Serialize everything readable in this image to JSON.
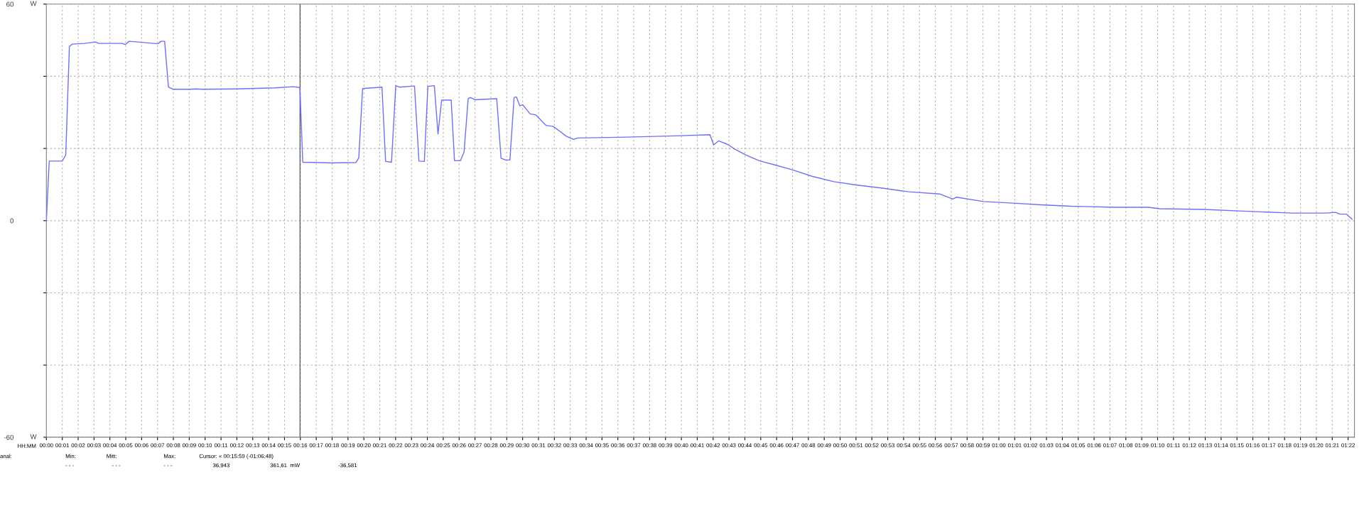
{
  "chart_data": {
    "type": "line",
    "ylabel": "W",
    "xlabel": "HH:MM",
    "xlim": [
      0,
      82.4
    ],
    "ylim": [
      -60,
      60
    ],
    "yticks": [
      -60,
      {
        "value": -40,
        "label": null
      },
      {
        "value": -20,
        "label": null
      },
      0,
      {
        "value": 20,
        "label": null
      },
      {
        "value": 40,
        "label": null
      },
      60
    ],
    "xticks": [
      {
        "value": 0,
        "label": "00:00"
      },
      {
        "value": 1,
        "label": "00:01"
      },
      {
        "value": 2,
        "label": "00:02"
      },
      {
        "value": 3,
        "label": "00:03"
      },
      {
        "value": 4,
        "label": "00:04"
      },
      {
        "value": 5,
        "label": "00:05"
      },
      {
        "value": 6,
        "label": "00:06"
      },
      {
        "value": 7,
        "label": "00:07"
      },
      {
        "value": 8,
        "label": "00:08"
      },
      {
        "value": 9,
        "label": "00:09"
      },
      {
        "value": 10,
        "label": "00:10"
      },
      {
        "value": 11,
        "label": "00:11"
      },
      {
        "value": 12,
        "label": "00:12"
      },
      {
        "value": 13,
        "label": "00:13"
      },
      {
        "value": 14,
        "label": "00:14"
      },
      {
        "value": 15,
        "label": "00:15"
      },
      {
        "value": 16,
        "label": "00:16"
      },
      {
        "value": 17,
        "label": "00:17"
      },
      {
        "value": 18,
        "label": "00:18"
      },
      {
        "value": 19,
        "label": "00:19"
      },
      {
        "value": 20,
        "label": "00:20"
      },
      {
        "value": 21,
        "label": "00:21"
      },
      {
        "value": 22,
        "label": "00:22"
      },
      {
        "value": 23,
        "label": "00:23"
      },
      {
        "value": 24,
        "label": "00:24"
      },
      {
        "value": 25,
        "label": "00:25"
      },
      {
        "value": 26,
        "label": "00:26"
      },
      {
        "value": 27,
        "label": "00:27"
      },
      {
        "value": 28,
        "label": "00:28"
      },
      {
        "value": 29,
        "label": "00:29"
      },
      {
        "value": 30,
        "label": "00:30"
      },
      {
        "value": 31,
        "label": "00:31"
      },
      {
        "value": 32,
        "label": "00:32"
      },
      {
        "value": 33,
        "label": "00:33"
      },
      {
        "value": 34,
        "label": "00:34"
      },
      {
        "value": 35,
        "label": "00:35"
      },
      {
        "value": 36,
        "label": "00:36"
      },
      {
        "value": 37,
        "label": "00:37"
      },
      {
        "value": 38,
        "label": "00:38"
      },
      {
        "value": 39,
        "label": "00:39"
      },
      {
        "value": 40,
        "label": "00:40"
      },
      {
        "value": 41,
        "label": "00:41"
      },
      {
        "value": 42,
        "label": "00:42"
      },
      {
        "value": 43,
        "label": "00:43"
      },
      {
        "value": 44,
        "label": "00:44"
      },
      {
        "value": 45,
        "label": "00:45"
      },
      {
        "value": 46,
        "label": "00:46"
      },
      {
        "value": 47,
        "label": "00:47"
      },
      {
        "value": 48,
        "label": "00:48"
      },
      {
        "value": 49,
        "label": "00:49"
      },
      {
        "value": 50,
        "label": "00:50"
      },
      {
        "value": 51,
        "label": "00:51"
      },
      {
        "value": 52,
        "label": "00:52"
      },
      {
        "value": 53,
        "label": "00:53"
      },
      {
        "value": 54,
        "label": "00:54"
      },
      {
        "value": 55,
        "label": "00:55"
      },
      {
        "value": 56,
        "label": "00:56"
      },
      {
        "value": 57,
        "label": "00:57"
      },
      {
        "value": 58,
        "label": "00:58"
      },
      {
        "value": 59,
        "label": "00:59"
      },
      {
        "value": 60,
        "label": "01:00"
      },
      {
        "value": 61,
        "label": "01:01"
      },
      {
        "value": 62,
        "label": "01:02"
      },
      {
        "value": 63,
        "label": "01:03"
      },
      {
        "value": 64,
        "label": "01:04"
      },
      {
        "value": 65,
        "label": "01:05"
      },
      {
        "value": 66,
        "label": "01:06"
      },
      {
        "value": 67,
        "label": "01:07"
      },
      {
        "value": 68,
        "label": "01:08"
      },
      {
        "value": 69,
        "label": "01:09"
      },
      {
        "value": 70,
        "label": "01:10"
      },
      {
        "value": 71,
        "label": "01:11"
      },
      {
        "value": 72,
        "label": "01:12"
      },
      {
        "value": 73,
        "label": "01:13"
      },
      {
        "value": 74,
        "label": "01:14"
      },
      {
        "value": 75,
        "label": "01:15"
      },
      {
        "value": 76,
        "label": "01:16"
      },
      {
        "value": 77,
        "label": "01:17"
      },
      {
        "value": 78,
        "label": "01:18"
      },
      {
        "value": 79,
        "label": "01:19"
      },
      {
        "value": 80,
        "label": "01:20"
      },
      {
        "value": 81,
        "label": "01:21"
      },
      {
        "value": 82,
        "label": "01:22"
      }
    ],
    "grid": true,
    "line_style": "solid",
    "marker": "none",
    "legend": false,
    "ref_lines": [
      {
        "axis": "x",
        "value": 15.98,
        "color": "#606060",
        "line_style": "solid"
      }
    ],
    "annotations": [
      "anal:",
      "Min:",
      "Mitt:",
      "Max:",
      "Cursor: « 00:15:59 (-01:06:48)",
      "- - -",
      "- - -",
      "- - -",
      "36,943",
      "361,61  mW",
      "-36,581"
    ],
    "series": [
      {
        "color": "#6e6eff",
        "x": [
          0,
          0.18,
          1.0,
          1.22,
          1.45,
          1.64,
          2.39,
          3.1,
          3.28,
          4.78,
          4.97,
          5.22,
          7.02,
          7.24,
          7.45,
          7.69,
          7.98,
          9.03,
          9.48,
          9.78,
          12.0,
          14.4,
          15.53,
          15.97,
          15.98,
          16.15,
          17.95,
          19.5,
          19.68,
          19.92,
          21.14,
          21.37,
          21.74,
          22.01,
          22.24,
          23.19,
          23.47,
          23.81,
          24.03,
          24.44,
          24.67,
          24.9,
          25.5,
          25.71,
          26.08,
          26.31,
          26.57,
          26.72,
          26.99,
          28.37,
          28.64,
          28.92,
          29.2,
          29.46,
          29.61,
          29.82,
          30.01,
          30.47,
          30.83,
          31.47,
          31.93,
          32.39,
          32.75,
          33.21,
          33.48,
          36.04,
          39.71,
          41.8,
          42.04,
          42.35,
          42.76,
          42.96,
          43.37,
          44.07,
          44.9,
          46.0,
          46.98,
          48.22,
          49.6,
          50.99,
          52.66,
          54.31,
          56.26,
          57.1,
          57.32,
          59.03,
          60.69,
          62.64,
          64.57,
          67.34,
          69.42,
          70.12,
          72.89,
          75.66,
          78.43,
          80.65,
          81.2,
          81.48,
          81.9,
          82.25
        ],
        "values": [
          0,
          16.5,
          16.5,
          18.2,
          48.3,
          48.9,
          49.1,
          49.5,
          49.1,
          49.1,
          48.8,
          49.7,
          49.0,
          49.7,
          49.7,
          37.0,
          36.4,
          36.4,
          36.5,
          36.4,
          36.5,
          36.8,
          37.1,
          36.9,
          35.8,
          16.2,
          16.0,
          16.1,
          17.4,
          36.6,
          37.0,
          16.4,
          16.2,
          37.4,
          37.0,
          37.3,
          16.5,
          16.4,
          37.2,
          37.4,
          24.0,
          33.4,
          33.4,
          16.6,
          16.6,
          19.0,
          33.8,
          34.1,
          33.5,
          33.8,
          17.3,
          16.8,
          16.8,
          34.1,
          34.3,
          31.8,
          32.1,
          29.6,
          29.3,
          26.4,
          26.1,
          24.6,
          23.4,
          22.5,
          22.9,
          23.1,
          23.5,
          23.8,
          21.0,
          22.1,
          21.4,
          21.0,
          19.8,
          18.2,
          16.6,
          15.3,
          14.1,
          12.3,
          10.8,
          9.9,
          9.0,
          8.0,
          7.4,
          6.0,
          6.5,
          5.3,
          4.9,
          4.4,
          4.0,
          3.7,
          3.7,
          3.3,
          3.1,
          2.6,
          2.1,
          2.1,
          2.3,
          1.8,
          1.8,
          0.4
        ]
      }
    ]
  }
}
